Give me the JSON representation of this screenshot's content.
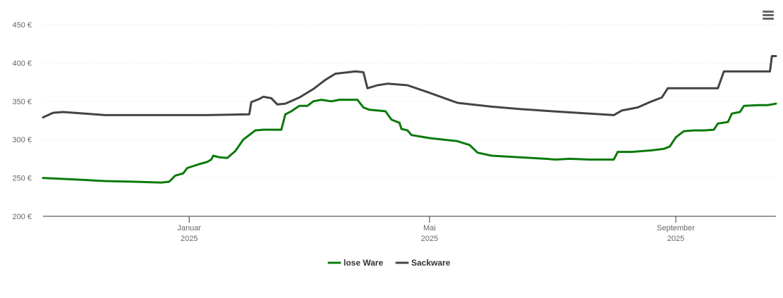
{
  "menu": {
    "icon": "hamburger-menu-icon"
  },
  "chart_data": {
    "type": "line",
    "y_ticks": [
      "200 €",
      "250 €",
      "300 €",
      "350 €",
      "400 €",
      "450 €"
    ],
    "ylim": [
      200,
      450
    ],
    "xlim": [
      "2024-10-20",
      "2025-10-21"
    ],
    "x_ticks": [
      {
        "date": "2025-01-01",
        "label": "Januar",
        "year": "2025"
      },
      {
        "date": "2025-05-01",
        "label": "Mai",
        "year": "2025"
      },
      {
        "date": "2025-09-01",
        "label": "September",
        "year": "2025"
      }
    ],
    "grid": true,
    "legend_position": "bottom-center",
    "series": [
      {
        "name": "lose Ware",
        "color": "#0a7a0a",
        "points": [
          [
            "2024-10-20",
            250
          ],
          [
            "2024-11-05",
            248
          ],
          [
            "2024-11-20",
            246
          ],
          [
            "2024-12-05",
            245
          ],
          [
            "2024-12-18",
            244
          ],
          [
            "2024-12-22",
            245
          ],
          [
            "2024-12-25",
            253
          ],
          [
            "2024-12-29",
            256
          ],
          [
            "2024-12-31",
            263
          ],
          [
            "2025-01-06",
            268
          ],
          [
            "2025-01-10",
            271
          ],
          [
            "2025-01-12",
            274
          ],
          [
            "2025-01-13",
            279
          ],
          [
            "2025-01-16",
            277
          ],
          [
            "2025-01-20",
            276
          ],
          [
            "2025-01-24",
            285
          ],
          [
            "2025-01-28",
            300
          ],
          [
            "2025-02-03",
            312
          ],
          [
            "2025-02-07",
            313
          ],
          [
            "2025-02-16",
            313
          ],
          [
            "2025-02-18",
            333
          ],
          [
            "2025-02-21",
            337
          ],
          [
            "2025-02-25",
            344
          ],
          [
            "2025-03-01",
            344
          ],
          [
            "2025-03-04",
            350
          ],
          [
            "2025-03-08",
            352
          ],
          [
            "2025-03-13",
            350
          ],
          [
            "2025-03-17",
            352
          ],
          [
            "2025-03-26",
            352
          ],
          [
            "2025-03-29",
            342
          ],
          [
            "2025-04-01",
            339
          ],
          [
            "2025-04-09",
            337
          ],
          [
            "2025-04-12",
            326
          ],
          [
            "2025-04-16",
            322
          ],
          [
            "2025-04-17",
            314
          ],
          [
            "2025-04-20",
            312
          ],
          [
            "2025-04-22",
            306
          ],
          [
            "2025-05-01",
            302
          ],
          [
            "2025-05-15",
            298
          ],
          [
            "2025-05-21",
            293
          ],
          [
            "2025-05-25",
            283
          ],
          [
            "2025-06-01",
            279
          ],
          [
            "2025-06-15",
            277
          ],
          [
            "2025-06-28",
            275
          ],
          [
            "2025-07-03",
            274
          ],
          [
            "2025-07-10",
            275
          ],
          [
            "2025-07-20",
            274
          ],
          [
            "2025-08-01",
            274
          ],
          [
            "2025-08-03",
            284
          ],
          [
            "2025-08-10",
            284
          ],
          [
            "2025-08-15",
            285
          ],
          [
            "2025-08-20",
            286
          ],
          [
            "2025-08-26",
            288
          ],
          [
            "2025-08-29",
            291
          ],
          [
            "2025-09-01",
            303
          ],
          [
            "2025-09-05",
            311
          ],
          [
            "2025-09-10",
            312
          ],
          [
            "2025-09-15",
            312
          ],
          [
            "2025-09-20",
            313
          ],
          [
            "2025-09-22",
            321
          ],
          [
            "2025-09-27",
            323
          ],
          [
            "2025-09-29",
            334
          ],
          [
            "2025-10-03",
            336
          ],
          [
            "2025-10-05",
            344
          ],
          [
            "2025-10-12",
            345
          ],
          [
            "2025-10-17",
            345
          ],
          [
            "2025-10-21",
            347
          ]
        ]
      },
      {
        "name": "Sackware",
        "color": "#434348",
        "points": [
          [
            "2024-10-20",
            329
          ],
          [
            "2024-10-25",
            335
          ],
          [
            "2024-10-30",
            336
          ],
          [
            "2024-11-10",
            334
          ],
          [
            "2024-11-20",
            332
          ],
          [
            "2024-12-15",
            332
          ],
          [
            "2025-01-10",
            332
          ],
          [
            "2025-01-31",
            333
          ],
          [
            "2025-02-01",
            349
          ],
          [
            "2025-02-05",
            353
          ],
          [
            "2025-02-07",
            356
          ],
          [
            "2025-02-11",
            354
          ],
          [
            "2025-02-14",
            346
          ],
          [
            "2025-02-18",
            347
          ],
          [
            "2025-02-25",
            355
          ],
          [
            "2025-03-04",
            366
          ],
          [
            "2025-03-10",
            378
          ],
          [
            "2025-03-15",
            386
          ],
          [
            "2025-03-25",
            389
          ],
          [
            "2025-03-29",
            388
          ],
          [
            "2025-03-31",
            367
          ],
          [
            "2025-04-05",
            371
          ],
          [
            "2025-04-10",
            373
          ],
          [
            "2025-04-20",
            371
          ],
          [
            "2025-04-30",
            362
          ],
          [
            "2025-05-15",
            348
          ],
          [
            "2025-06-01",
            343
          ],
          [
            "2025-06-15",
            340
          ],
          [
            "2025-07-01",
            337
          ],
          [
            "2025-07-20",
            334
          ],
          [
            "2025-08-01",
            332
          ],
          [
            "2025-08-05",
            338
          ],
          [
            "2025-08-13",
            342
          ],
          [
            "2025-08-20",
            350
          ],
          [
            "2025-08-25",
            355
          ],
          [
            "2025-08-28",
            367
          ],
          [
            "2025-09-01",
            367
          ],
          [
            "2025-09-22",
            367
          ],
          [
            "2025-09-25",
            389
          ],
          [
            "2025-10-18",
            389
          ],
          [
            "2025-10-19",
            409
          ],
          [
            "2025-10-21",
            409
          ]
        ]
      }
    ]
  }
}
